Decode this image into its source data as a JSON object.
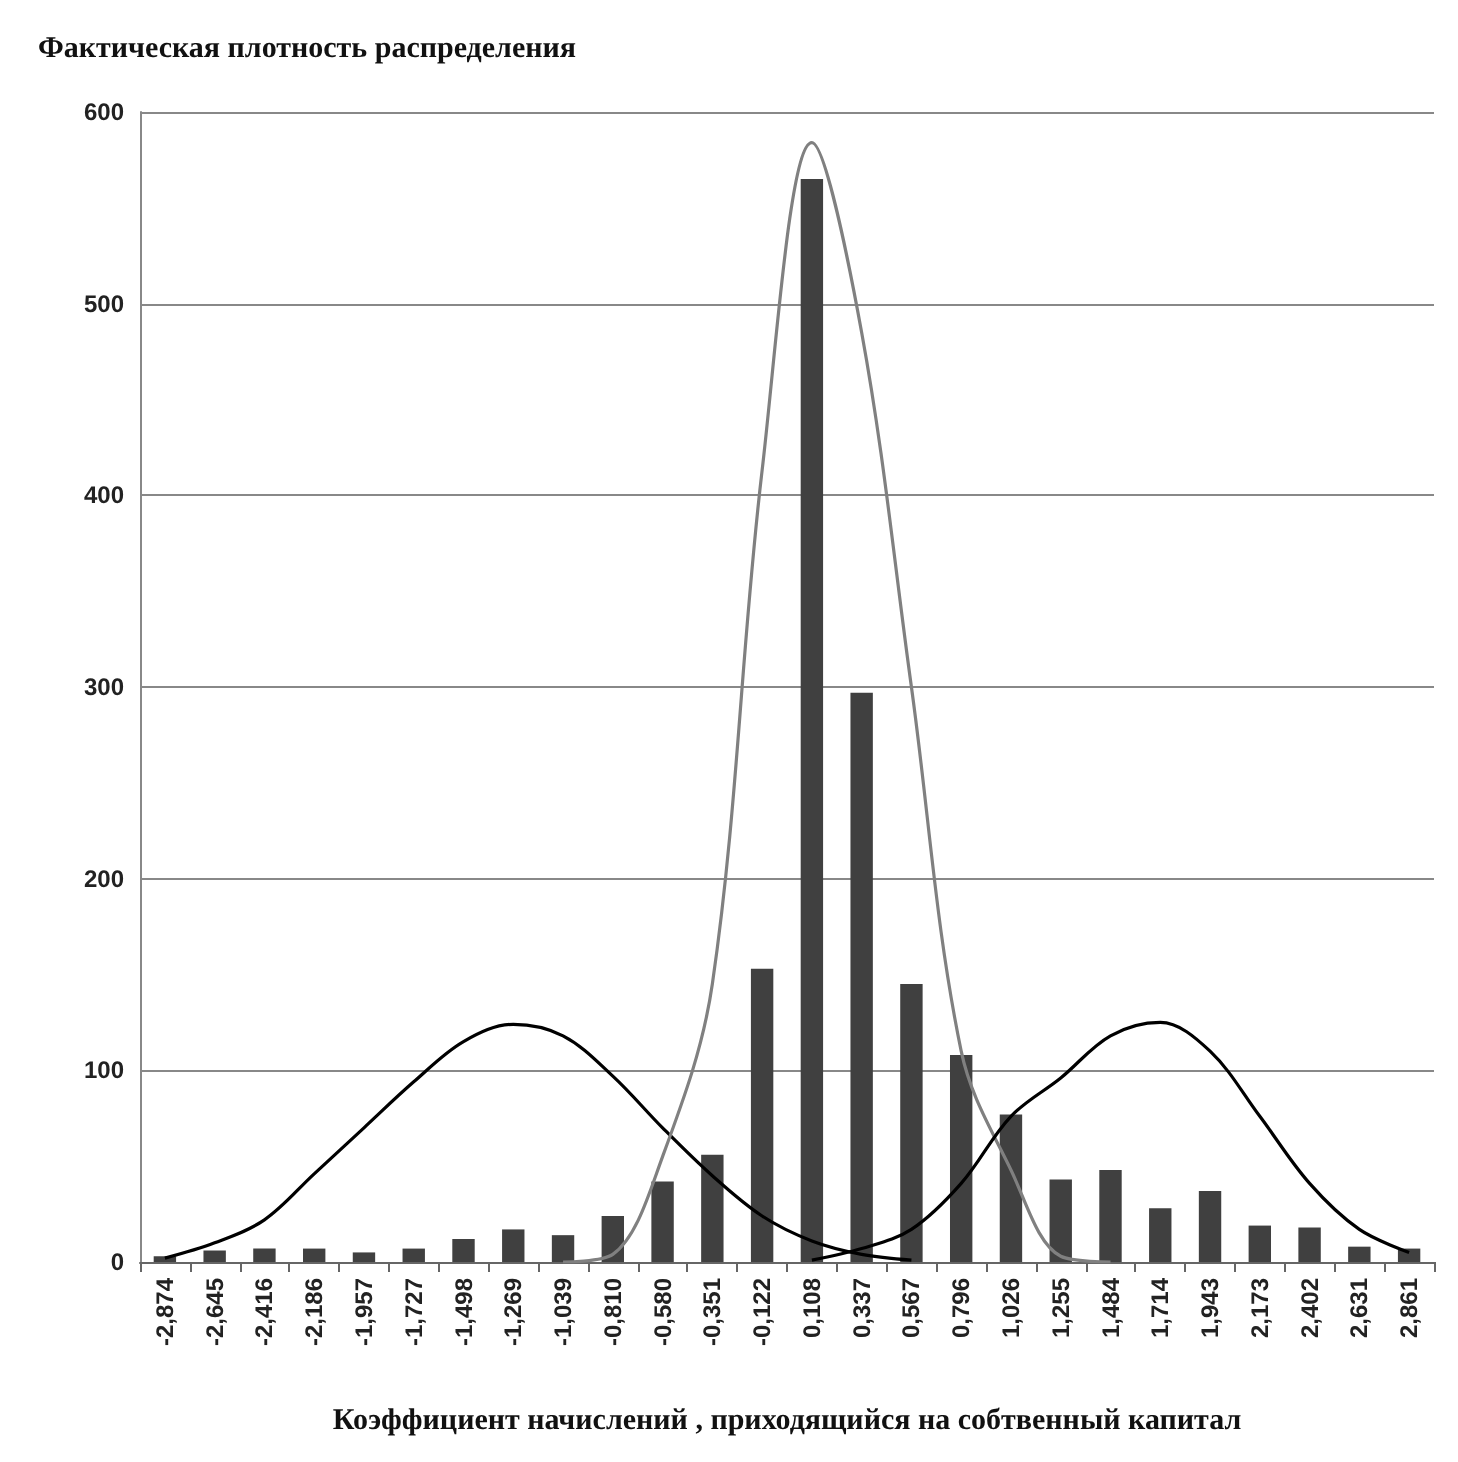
{
  "chart_data": {
    "type": "bar",
    "title": "Фактическая плотность распределения",
    "xlabel": "Коэффициент начислений , приходящийся на собтвенный капитал",
    "categories": [
      "-2,874",
      "-2,645",
      "-2,416",
      "-2,186",
      "-1,957",
      "-1,727",
      "-1,498",
      "-1,269",
      "-1,039",
      "-0,810",
      "-0,580",
      "-0,351",
      "-0,122",
      "0,108",
      "0,337",
      "0,567",
      "0,796",
      "1,026",
      "1,255",
      "1,484",
      "1,714",
      "1,943",
      "2,173",
      "2,402",
      "2,631",
      "2,861"
    ],
    "series": [
      {
        "color": "#404040",
        "values": [
          3,
          6,
          7,
          7,
          5,
          7,
          12,
          17,
          14,
          24,
          42,
          56,
          153,
          565,
          297,
          145,
          108,
          77,
          43,
          48,
          28,
          37,
          19,
          18,
          8,
          7
        ]
      },
      {
        "type": "line",
        "color": "#000000",
        "values": [
          2,
          10,
          22,
          46,
          70,
          94,
          115,
          124,
          118,
          97,
          70,
          45,
          24,
          11,
          4,
          1,
          null,
          null,
          null,
          null,
          null,
          null,
          null,
          null,
          null,
          null
        ]
      },
      {
        "type": "line",
        "color": "#808080",
        "values": [
          null,
          null,
          null,
          null,
          null,
          null,
          null,
          null,
          0,
          4,
          55,
          145,
          413,
          584,
          485,
          300,
          110,
          48,
          3,
          0,
          null,
          null,
          null,
          null,
          null,
          null
        ]
      },
      {
        "type": "line",
        "color": "#000000",
        "values": [
          null,
          null,
          null,
          null,
          null,
          null,
          null,
          null,
          null,
          null,
          null,
          null,
          null,
          1,
          7,
          17,
          41,
          76,
          96,
          118,
          125,
          110,
          76,
          41,
          17,
          5
        ]
      }
    ],
    "ylim": [
      0,
      600
    ],
    "yticks": [
      0,
      100,
      200,
      300,
      400,
      500,
      600
    ],
    "grid": "y",
    "marker": "none"
  }
}
